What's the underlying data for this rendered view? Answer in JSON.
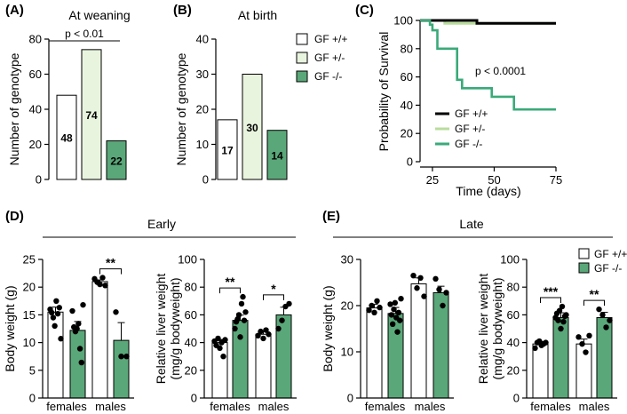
{
  "colors": {
    "wt": "#ffffff",
    "het": "#e8f4de",
    "ko": "#5aa779",
    "surv_wt": "#000000",
    "surv_het": "#b9dc9c",
    "surv_ko": "#3aaa79"
  },
  "panels": {
    "A": "(A)",
    "B": "(B)",
    "C": "(C)",
    "D": "(D)",
    "E": "(E)"
  },
  "section": {
    "early": "Early",
    "late": "Late"
  },
  "legend_top": [
    "GF +/+",
    "GF +/-",
    "GF -/-"
  ],
  "legend_bottom": [
    "GF +/+",
    "GF -/-"
  ],
  "chart_data": [
    {
      "id": "weaning",
      "type": "bar",
      "title": "At weaning",
      "ylabel": "Number of genotype",
      "ylim": [
        0,
        80
      ],
      "yticks": [
        "0",
        "20",
        "40",
        "60",
        "80"
      ],
      "categories": [
        "GF +/+",
        "GF +/-",
        "GF -/-"
      ],
      "values": [
        48,
        74,
        22
      ],
      "labels": [
        "48",
        "74",
        "22"
      ],
      "annotation": "p < 0.01"
    },
    {
      "id": "birth",
      "type": "bar",
      "title": "At birth",
      "ylabel": "Number of genotype",
      "ylim": [
        0,
        40
      ],
      "yticks": [
        "0",
        "10",
        "20",
        "30",
        "40"
      ],
      "categories": [
        "GF +/+",
        "GF +/-",
        "GF -/-"
      ],
      "values": [
        17,
        30,
        14
      ],
      "labels": [
        "17",
        "30",
        "14"
      ]
    },
    {
      "id": "survival",
      "type": "line",
      "ylabel": "Probability of Survival",
      "xlabel": "Time (days)",
      "xlim": [
        20,
        75
      ],
      "ylim": [
        0,
        100
      ],
      "xticks": [
        "25",
        "50",
        "75"
      ],
      "yticks": [
        "0",
        "20",
        "40",
        "60",
        "80",
        "100"
      ],
      "annotation": "p < 0.0001",
      "series": [
        {
          "name": "GF +/+",
          "x": [
            20,
            43,
            43,
            75
          ],
          "y": [
            100,
            100,
            98,
            98
          ]
        },
        {
          "name": "GF +/-",
          "x": [
            20,
            30,
            30,
            75
          ],
          "y": [
            100,
            100,
            98,
            98
          ]
        },
        {
          "name": "GF -/-",
          "x": [
            20,
            24,
            24,
            25,
            25,
            27,
            27,
            35,
            35,
            37,
            37,
            49,
            49,
            58,
            58,
            75
          ],
          "y": [
            100,
            100,
            97,
            97,
            93,
            93,
            80,
            80,
            58,
            58,
            52,
            52,
            46,
            46,
            37,
            37
          ]
        }
      ]
    },
    {
      "id": "early_bw",
      "type": "bar",
      "ylabel": "Body weight (g)",
      "ylim": [
        0,
        25
      ],
      "yticks": [
        "0",
        "5",
        "10",
        "15",
        "20",
        "25"
      ],
      "groups": [
        "females",
        "males"
      ],
      "series": [
        {
          "name": "GF +/+",
          "values": [
            15.5,
            21.0
          ],
          "sem": [
            0.9,
            0.3
          ],
          "points": [
            [
              16,
              15.4,
              14.5,
              13,
              17.5,
              15.2,
              16.3,
              10.7
            ],
            [
              21.5,
              20.9,
              20.5,
              21.7,
              20.3
            ]
          ]
        },
        {
          "name": "GF -/-",
          "values": [
            12.2,
            10.4
          ],
          "sem": [
            1.6,
            3.2
          ],
          "points": [
            [
              15.7,
              12.8,
              12,
              12.5,
              13.4,
              8.9,
              6.4,
              16.8
            ],
            [
              15.5,
              7.5,
              7.5
            ]
          ]
        }
      ],
      "significance": [
        {
          "group": "males",
          "label": "**"
        }
      ]
    },
    {
      "id": "early_liver",
      "type": "bar",
      "ylabel": "Relative liver weight (mg/g bodyweight)",
      "ylim": [
        0,
        100
      ],
      "yticks": [
        "0",
        "20",
        "40",
        "60",
        "80",
        "100"
      ],
      "groups": [
        "females",
        "males"
      ],
      "series": [
        {
          "name": "GF +/+",
          "values": [
            40,
            46
          ],
          "sem": [
            2.2,
            1.8
          ],
          "points": [
            [
              41,
              38,
              43,
              36,
              40,
              30,
              42
            ],
            [
              45,
              48,
              43,
              49,
              46
            ]
          ]
        },
        {
          "name": "GF -/-",
          "values": [
            56,
            60
          ],
          "sem": [
            3.8,
            5.5
          ],
          "points": [
            [
              50,
              55,
              57,
              60,
              44,
              68,
              73,
              56,
              62
            ],
            [
              50,
              56,
              66,
              68
            ]
          ]
        }
      ],
      "significance": [
        {
          "group": "females",
          "label": "**"
        },
        {
          "group": "males",
          "label": "*"
        }
      ]
    },
    {
      "id": "late_bw",
      "type": "bar",
      "ylabel": "Body weight (g)",
      "ylim": [
        0,
        30
      ],
      "yticks": [
        "0",
        "10",
        "20",
        "30"
      ],
      "groups": [
        "females",
        "males"
      ],
      "series": [
        {
          "name": "GF +/+",
          "values": [
            19.5,
            24.7
          ],
          "sem": [
            0.8,
            1.3
          ],
          "points": [
            [
              19,
              20,
              18.5,
              21,
              19.6
            ],
            [
              26.5,
              23.8,
              26,
              22
            ]
          ]
        },
        {
          "name": "GF -/-",
          "values": [
            18.3,
            22.8
          ],
          "sem": [
            1.3,
            1.4
          ],
          "points": [
            [
              20.3,
              18,
              16,
              19.2,
              20.6,
              17.4,
              14.3,
              18.5,
              16.8,
              21.5
            ],
            [
              25.8,
              23.5,
              20,
              22.8
            ]
          ]
        }
      ]
    },
    {
      "id": "late_liver",
      "type": "bar",
      "ylabel": "Relative liver weight (mg/g bodyweight)",
      "ylim": [
        0,
        100
      ],
      "yticks": [
        "0",
        "20",
        "40",
        "60",
        "80",
        "100"
      ],
      "groups": [
        "females",
        "males"
      ],
      "series": [
        {
          "name": "GF +/+",
          "values": [
            39,
            39
          ],
          "sem": [
            1.8,
            3.5
          ],
          "points": [
            [
              36,
              40,
              41,
              38,
              39,
              40
            ],
            [
              44,
              39,
              33,
              45
            ]
          ]
        },
        {
          "name": "GF -/-",
          "values": [
            58,
            58
          ],
          "sem": [
            3.5,
            3.8
          ],
          "points": [
            [
              58,
              61,
              56,
              63,
              50,
              66,
              55,
              59,
              60
            ],
            [
              64,
              60,
              51,
              56
            ]
          ]
        }
      ],
      "significance": [
        {
          "group": "females",
          "label": "***"
        },
        {
          "group": "males",
          "label": "**"
        }
      ]
    }
  ]
}
